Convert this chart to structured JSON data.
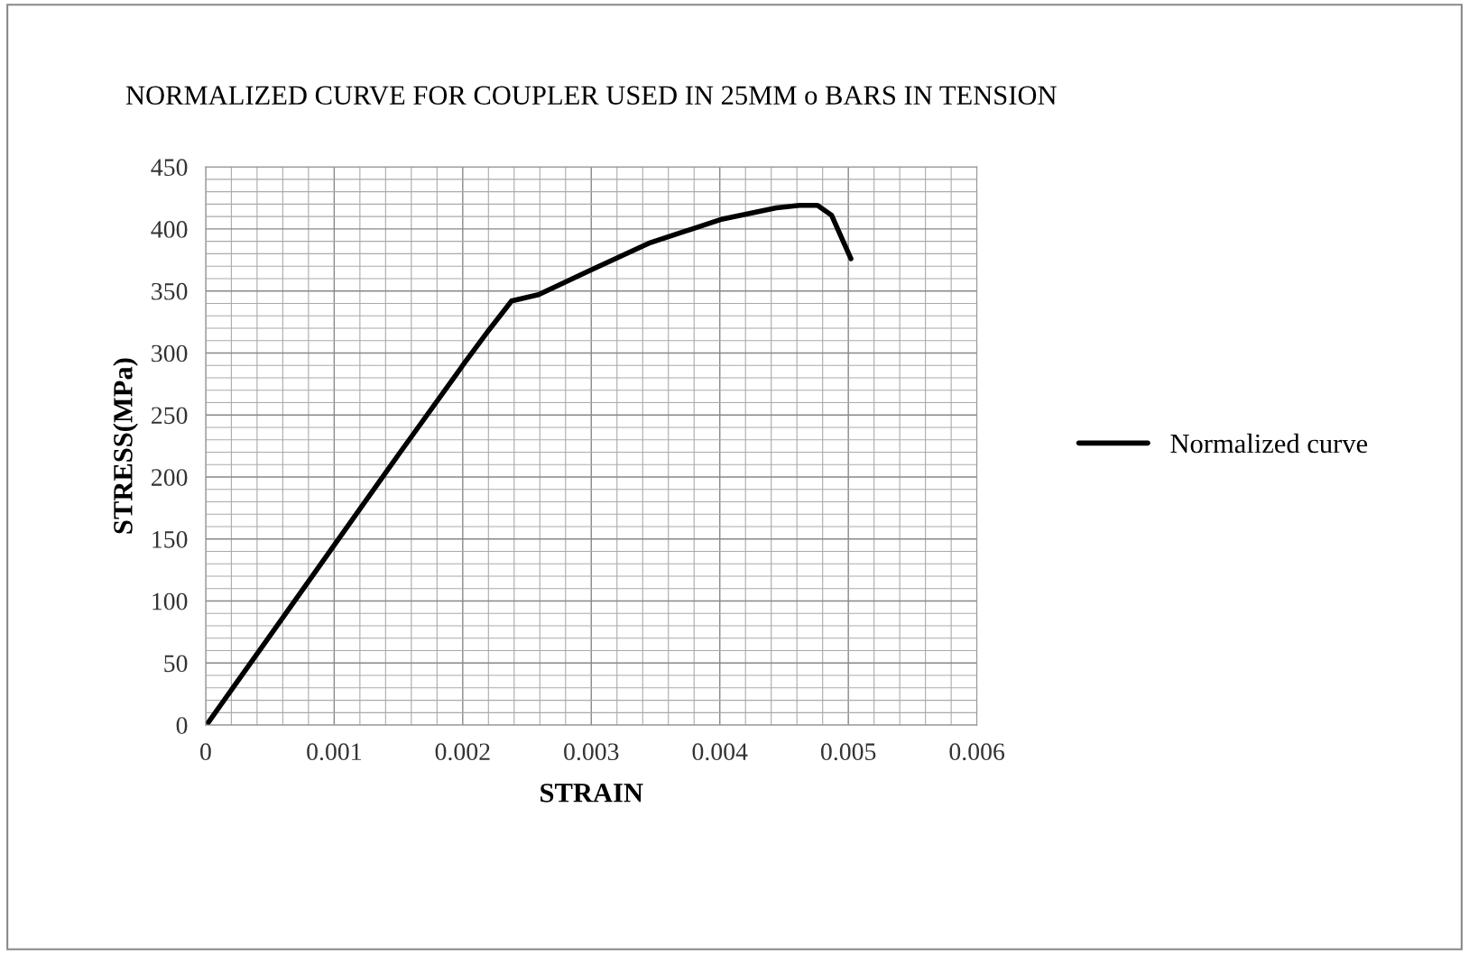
{
  "chart_data": {
    "type": "line",
    "title": "NORMALIZED CURVE FOR COUPLER USED IN 25MM o BARS IN TENSION",
    "xlabel": "STRAIN",
    "ylabel": "STRESS(MPa)",
    "series": [
      {
        "name": "Normalized curve",
        "color": "#000000",
        "x": [
          2e-05,
          0.0005,
          0.001,
          0.0015,
          0.002,
          0.0022,
          0.00238,
          0.00259,
          0.003,
          0.00346,
          0.00402,
          0.00444,
          0.00462,
          0.00476,
          0.00487,
          0.00493,
          0.00502
        ],
        "values": [
          2,
          72,
          145,
          218,
          290,
          318,
          342,
          347,
          367,
          389,
          408,
          417,
          419,
          419,
          411,
          397,
          376
        ]
      }
    ],
    "xlim": [
      0,
      0.006
    ],
    "xticks": [
      0,
      0.001,
      0.002,
      0.003,
      0.004,
      0.005,
      0.006
    ],
    "ylim": [
      0,
      450
    ],
    "yticks": [
      0,
      50,
      100,
      150,
      200,
      250,
      300,
      350,
      400,
      450
    ],
    "grid": true,
    "legend": "right",
    "marker": "none",
    "line_style": "solid"
  }
}
